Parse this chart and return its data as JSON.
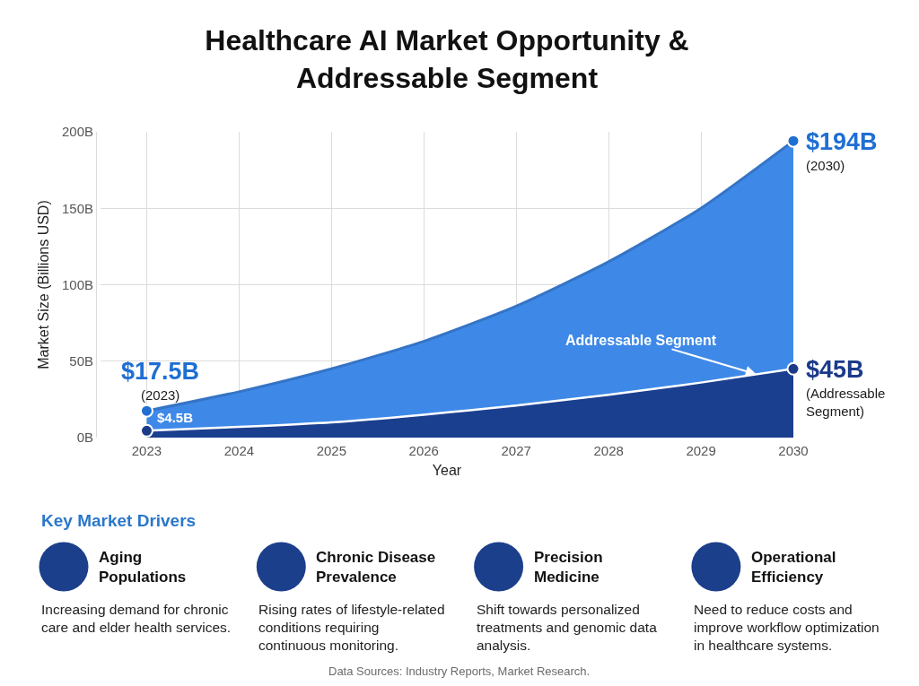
{
  "chart_data": [
    {
      "type": "area",
      "title": "Healthcare AI Market Opportunity &\nAddressable Segment",
      "xlabel": "Year",
      "ylabel": "Market Size (Billions USD)",
      "x": [
        2023,
        2024,
        2025,
        2026,
        2027,
        2028,
        2029,
        2030
      ],
      "series": [
        {
          "type": "area",
          "color": "#3e89e8",
          "values": [
            17.5,
            30,
            45,
            63,
            86,
            115,
            150,
            194
          ]
        },
        {
          "type": "area",
          "color": "#1b3f8f",
          "values": [
            4.5,
            7,
            10,
            15,
            21,
            28,
            36,
            45
          ]
        },
        {
          "type": "scatter",
          "color": "#1f6fd3",
          "values": [
            17.5,
            null,
            null,
            null,
            null,
            null,
            null,
            194
          ],
          "marker": "circle",
          "value_labels": [
            "$17.5B",
            null,
            null,
            null,
            null,
            null,
            null,
            "$194B"
          ]
        },
        {
          "type": "scatter",
          "color": "#1b3a8a",
          "values": [
            4.5,
            null,
            null,
            null,
            null,
            null,
            null,
            45
          ],
          "marker": "circle",
          "value_labels": [
            "$4.5B",
            null,
            null,
            null,
            null,
            null,
            null,
            "$45B"
          ]
        }
      ],
      "xlim": [
        2022.5,
        2030
      ],
      "xticks": [
        2023,
        2024,
        2025,
        2026,
        2027,
        2028,
        2029,
        2030
      ],
      "ylim": [
        0,
        200
      ],
      "yticks": [
        {
          "value": 0,
          "label": "0B"
        },
        {
          "value": 50,
          "label": "50B"
        },
        {
          "value": 100,
          "label": "100B"
        },
        {
          "value": 150,
          "label": "150B"
        },
        {
          "value": 200,
          "label": "200B"
        }
      ],
      "grid": true,
      "annotations": [
        {
          "text": "(2023)",
          "x": 2023,
          "y": 17.5
        },
        {
          "text": "(2030)",
          "x": 2030,
          "y": 194
        },
        {
          "text": "(Addressable\nSegment)",
          "x": 2030,
          "y": 45
        },
        {
          "text": "Addressable Segment",
          "x": 2029.6,
          "y": 41.4
        },
        "Data Sources: Industry Reports, Market Research."
      ]
    },
    {
      "type": "other",
      "title": "Key Market Drivers",
      "annotations": [
        "Aging\nPopulations",
        "Increasing demand for chronic\ncare and elder health services.",
        "Chronic Disease\nPrevalence",
        "Rising rates of lifestyle-related\nconditions requiring\ncontinuous monitoring.",
        "Precision\nMedicine",
        "Shift towards personalized\ntreatments and genomic data\nanalysis.",
        "Operational\nEfficiency",
        "Need to reduce costs and\nimprove workflow optimization\nin healthcare systems."
      ]
    }
  ]
}
